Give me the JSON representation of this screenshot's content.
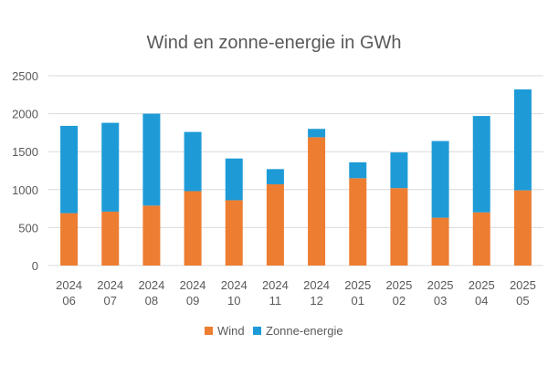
{
  "chart_data": {
    "type": "bar",
    "stacked": true,
    "title": "Wind en zonne-energie in GWh",
    "categories": [
      [
        "2024",
        "06"
      ],
      [
        "2024",
        "07"
      ],
      [
        "2024",
        "08"
      ],
      [
        "2024",
        "09"
      ],
      [
        "2024",
        "10"
      ],
      [
        "2024",
        "11"
      ],
      [
        "2024",
        "12"
      ],
      [
        "2025",
        "01"
      ],
      [
        "2025",
        "02"
      ],
      [
        "2025",
        "03"
      ],
      [
        "2025",
        "04"
      ],
      [
        "2025",
        "05"
      ]
    ],
    "series": [
      {
        "name": "Wind",
        "color": "#ED7D31",
        "values": [
          690,
          710,
          790,
          980,
          860,
          1070,
          1690,
          1150,
          1020,
          630,
          700,
          990
        ]
      },
      {
        "name": "Zonne-energie",
        "color": "#1E9BD7",
        "values": [
          1150,
          1170,
          1210,
          780,
          550,
          200,
          110,
          210,
          470,
          1010,
          1270,
          1330
        ]
      }
    ],
    "ylim": [
      0,
      2500
    ],
    "yticks": [
      0,
      500,
      1000,
      1500,
      2000,
      2500
    ],
    "grid": true,
    "legend": "bottom"
  }
}
